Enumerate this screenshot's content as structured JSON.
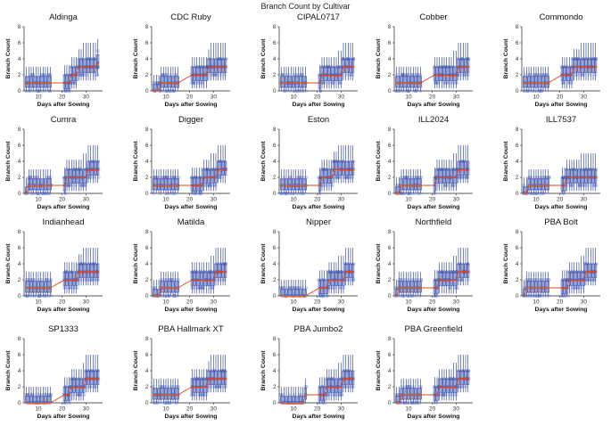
{
  "figure": {
    "title": "Branch Count by Cultivar"
  },
  "chart_data": {
    "type": "box",
    "title": "Branch Count by Cultivar",
    "xlabel": "Days after Sowing",
    "ylabel": "Branch Count",
    "xlim": [
      4,
      37
    ],
    "ylim": [
      0,
      8
    ],
    "xticks": [
      10,
      20,
      30
    ],
    "yticks": [
      0,
      2,
      4,
      6,
      8
    ],
    "grid": false,
    "colors": {
      "box": "#3b4fa8",
      "points": "#5b6fc4",
      "median_early": "#d9642a",
      "median_late": "#d94a2a"
    },
    "panels": [
      {
        "name": "Aldinga",
        "days": [
          5,
          6,
          7,
          8,
          9,
          10,
          11,
          12,
          13,
          14,
          15,
          21,
          22,
          23,
          24,
          25,
          26,
          27,
          28,
          29,
          30,
          31,
          32,
          33,
          34,
          35
        ],
        "medians": [
          1,
          1,
          1,
          1,
          1,
          1,
          1,
          1,
          1,
          1,
          1,
          1,
          1,
          1,
          2,
          2,
          2,
          3,
          3,
          3,
          3,
          3,
          3,
          3,
          3,
          3.5
        ]
      },
      {
        "name": "CDC Ruby",
        "days": [
          5,
          6,
          7,
          8,
          9,
          10,
          11,
          12,
          13,
          14,
          15,
          21,
          22,
          23,
          24,
          25,
          26,
          27,
          28,
          29,
          30,
          31,
          32,
          33,
          34,
          35
        ],
        "medians": [
          0,
          0,
          0,
          1,
          1,
          1,
          1,
          1,
          1,
          1,
          1,
          2,
          2,
          2,
          2,
          2,
          2,
          2,
          3,
          3,
          3,
          3,
          3,
          3,
          3,
          3
        ]
      },
      {
        "name": "CIPAL0717",
        "days": [
          5,
          6,
          7,
          8,
          9,
          10,
          11,
          12,
          13,
          14,
          15,
          21,
          22,
          23,
          24,
          25,
          26,
          27,
          28,
          29,
          30,
          31,
          32,
          33,
          34,
          35
        ],
        "medians": [
          1,
          1,
          1,
          1,
          1,
          1,
          1,
          1,
          1,
          1,
          1,
          1,
          2,
          2,
          2,
          2,
          2,
          2,
          2,
          2,
          2,
          3,
          3,
          3,
          3,
          3
        ]
      },
      {
        "name": "Cobber",
        "days": [
          5,
          6,
          7,
          8,
          9,
          10,
          11,
          12,
          13,
          14,
          15,
          21,
          22,
          23,
          24,
          25,
          26,
          27,
          28,
          29,
          30,
          31,
          32,
          33,
          34,
          35
        ],
        "medians": [
          1,
          1,
          1,
          1,
          1,
          1,
          1,
          1,
          1,
          1,
          1,
          2,
          2,
          2,
          2,
          2,
          2,
          2,
          2,
          2,
          2,
          3,
          3,
          3,
          3,
          3
        ]
      },
      {
        "name": "Commondo",
        "days": [
          5,
          6,
          7,
          8,
          9,
          10,
          11,
          12,
          13,
          14,
          15,
          21,
          22,
          23,
          24,
          25,
          26,
          27,
          28,
          29,
          30,
          31,
          32,
          33,
          34,
          35
        ],
        "medians": [
          1,
          1,
          1,
          1,
          1,
          1,
          1,
          1,
          1,
          1,
          1,
          2,
          2,
          2,
          2,
          2,
          3,
          3,
          3,
          3,
          3,
          3,
          3,
          3,
          3,
          3
        ]
      },
      {
        "name": "Cumra",
        "days": [
          5,
          6,
          7,
          8,
          9,
          10,
          11,
          12,
          13,
          14,
          15,
          21,
          22,
          23,
          24,
          25,
          26,
          27,
          28,
          29,
          30,
          31,
          32,
          33,
          34,
          35
        ],
        "medians": [
          0,
          1,
          1,
          1,
          1,
          1,
          1,
          1,
          1,
          1,
          1,
          1,
          2,
          2,
          2,
          2,
          2,
          2,
          2,
          2,
          2,
          3,
          3,
          3,
          3,
          3
        ]
      },
      {
        "name": "Digger",
        "days": [
          5,
          6,
          7,
          8,
          9,
          10,
          11,
          12,
          13,
          14,
          15,
          21,
          22,
          23,
          24,
          25,
          26,
          27,
          28,
          29,
          30,
          31,
          32,
          33,
          34,
          35
        ],
        "medians": [
          1,
          1,
          1,
          1,
          1,
          1,
          1,
          1,
          1,
          1,
          1,
          1,
          1,
          1,
          1,
          1,
          2,
          2,
          2,
          2,
          2,
          2,
          3,
          3,
          3,
          3
        ]
      },
      {
        "name": "Eston",
        "days": [
          5,
          6,
          7,
          8,
          9,
          10,
          11,
          12,
          13,
          14,
          15,
          21,
          22,
          23,
          24,
          25,
          26,
          27,
          28,
          29,
          30,
          31,
          32,
          33,
          34,
          35
        ],
        "medians": [
          1,
          1,
          1,
          1,
          1,
          1,
          1,
          1,
          1,
          1,
          1,
          1,
          2,
          2,
          2,
          2,
          2,
          3,
          3,
          3,
          3,
          3,
          3,
          3,
          3,
          3
        ]
      },
      {
        "name": "ILL2024",
        "days": [
          5,
          6,
          7,
          8,
          9,
          10,
          11,
          12,
          13,
          14,
          15,
          21,
          22,
          23,
          24,
          25,
          26,
          27,
          28,
          29,
          30,
          31,
          32,
          33,
          34,
          35
        ],
        "medians": [
          0,
          0,
          1,
          1,
          1,
          1,
          1,
          1,
          1,
          1,
          1,
          1,
          2,
          2,
          2,
          2,
          2,
          2,
          2,
          2,
          2,
          3,
          3,
          3,
          3,
          3
        ]
      },
      {
        "name": "ILL7537",
        "days": [
          5,
          6,
          7,
          8,
          9,
          10,
          11,
          12,
          13,
          14,
          15,
          21,
          22,
          23,
          24,
          25,
          26,
          27,
          28,
          29,
          30,
          31,
          32,
          33,
          34,
          35
        ],
        "medians": [
          0,
          0,
          1,
          1,
          1,
          1,
          1,
          1,
          1,
          1,
          1,
          1,
          1,
          2,
          2,
          2,
          2,
          2,
          2,
          2,
          2,
          2,
          2,
          2,
          2,
          2
        ]
      },
      {
        "name": "Indianhead",
        "days": [
          5,
          6,
          7,
          8,
          9,
          10,
          11,
          12,
          13,
          14,
          15,
          21,
          22,
          23,
          24,
          25,
          26,
          27,
          28,
          29,
          30,
          31,
          32,
          33,
          34,
          35
        ],
        "medians": [
          1,
          1,
          1,
          1,
          1,
          1,
          1,
          1,
          1,
          1,
          1,
          2,
          2,
          2,
          2,
          2,
          2,
          3,
          3,
          3,
          3,
          3,
          3,
          3,
          3,
          3
        ]
      },
      {
        "name": "Matilda",
        "days": [
          5,
          6,
          7,
          8,
          9,
          10,
          11,
          12,
          13,
          14,
          15,
          21,
          22,
          23,
          24,
          25,
          26,
          27,
          28,
          29,
          30,
          31,
          32,
          33,
          34,
          35
        ],
        "medians": [
          0,
          0,
          0,
          1,
          1,
          1,
          1,
          1,
          1,
          1,
          1,
          2,
          2,
          2,
          2,
          2,
          2,
          2,
          2,
          2,
          2,
          3,
          3,
          3,
          3,
          3
        ]
      },
      {
        "name": "Nipper",
        "days": [
          5,
          6,
          7,
          8,
          9,
          10,
          11,
          12,
          13,
          14,
          15,
          21,
          22,
          23,
          24,
          25,
          26,
          27,
          28,
          29,
          30,
          31,
          32,
          33,
          34,
          35
        ],
        "medians": [
          0,
          0,
          0,
          0,
          0,
          0,
          0,
          0,
          0,
          0,
          0,
          1,
          1,
          1,
          1,
          2,
          2,
          2,
          2,
          2,
          2,
          2,
          3,
          3,
          3,
          3
        ]
      },
      {
        "name": "Northfield",
        "days": [
          5,
          6,
          7,
          8,
          9,
          10,
          11,
          12,
          13,
          14,
          15,
          21,
          22,
          23,
          24,
          25,
          26,
          27,
          28,
          29,
          30,
          31,
          32,
          33,
          34,
          35
        ],
        "medians": [
          0,
          1,
          1,
          1,
          1,
          1,
          1,
          1,
          1,
          1,
          1,
          1,
          1,
          2,
          2,
          2,
          2,
          2,
          2,
          2,
          2,
          3,
          3,
          3,
          3,
          3
        ]
      },
      {
        "name": "PBA Bolt",
        "days": [
          5,
          6,
          7,
          8,
          9,
          10,
          11,
          12,
          13,
          14,
          15,
          21,
          22,
          23,
          24,
          25,
          26,
          27,
          28,
          29,
          30,
          31,
          32,
          33,
          34,
          35
        ],
        "medians": [
          0,
          1,
          1,
          1,
          1,
          1,
          1,
          1,
          1,
          1,
          1,
          1,
          1,
          1,
          2,
          2,
          2,
          2,
          2,
          2,
          2,
          3,
          3,
          3,
          3,
          3
        ]
      },
      {
        "name": "SP1333",
        "days": [
          5,
          6,
          7,
          8,
          9,
          10,
          11,
          12,
          13,
          14,
          15,
          21,
          22,
          23,
          24,
          25,
          26,
          27,
          28,
          29,
          30,
          31,
          32,
          33,
          34,
          35
        ],
        "medians": [
          0,
          0,
          0,
          0,
          0,
          0,
          0,
          0,
          0,
          0,
          0,
          1,
          1,
          1,
          2,
          2,
          2,
          2,
          2,
          2,
          3,
          3,
          3,
          3,
          3,
          3
        ]
      },
      {
        "name": "PBA Hallmark XT",
        "days": [
          5,
          6,
          7,
          8,
          9,
          10,
          11,
          12,
          13,
          14,
          15,
          21,
          22,
          23,
          24,
          25,
          26,
          27,
          28,
          29,
          30,
          31,
          32,
          33,
          34,
          35
        ],
        "medians": [
          1,
          1,
          1,
          1,
          1,
          1,
          1,
          1,
          1,
          1,
          1,
          2,
          2,
          2,
          2,
          2,
          2,
          2,
          3,
          3,
          3,
          3,
          3,
          3,
          3,
          3
        ]
      },
      {
        "name": "PBA Jumbo2",
        "days": [
          5,
          6,
          7,
          8,
          9,
          10,
          11,
          12,
          13,
          14,
          15,
          21,
          22,
          23,
          24,
          25,
          26,
          27,
          28,
          29,
          30,
          31,
          32,
          33,
          34,
          35
        ],
        "medians": [
          0,
          0,
          0,
          0,
          0,
          0,
          0,
          0,
          0,
          0,
          1,
          1,
          1,
          1,
          2,
          2,
          2,
          2,
          2,
          2,
          2,
          3,
          3,
          3,
          3,
          3
        ]
      },
      {
        "name": "PBA Greenfield",
        "days": [
          5,
          6,
          7,
          8,
          9,
          10,
          11,
          12,
          13,
          14,
          15,
          21,
          22,
          23,
          24,
          25,
          26,
          27,
          28,
          29,
          30,
          31,
          32,
          33,
          34,
          35
        ],
        "medians": [
          0,
          0,
          1,
          1,
          1,
          1,
          1,
          1,
          1,
          1,
          1,
          1,
          1,
          2,
          2,
          2,
          2,
          2,
          2,
          2,
          2,
          3,
          3,
          3,
          3,
          3
        ]
      }
    ]
  }
}
